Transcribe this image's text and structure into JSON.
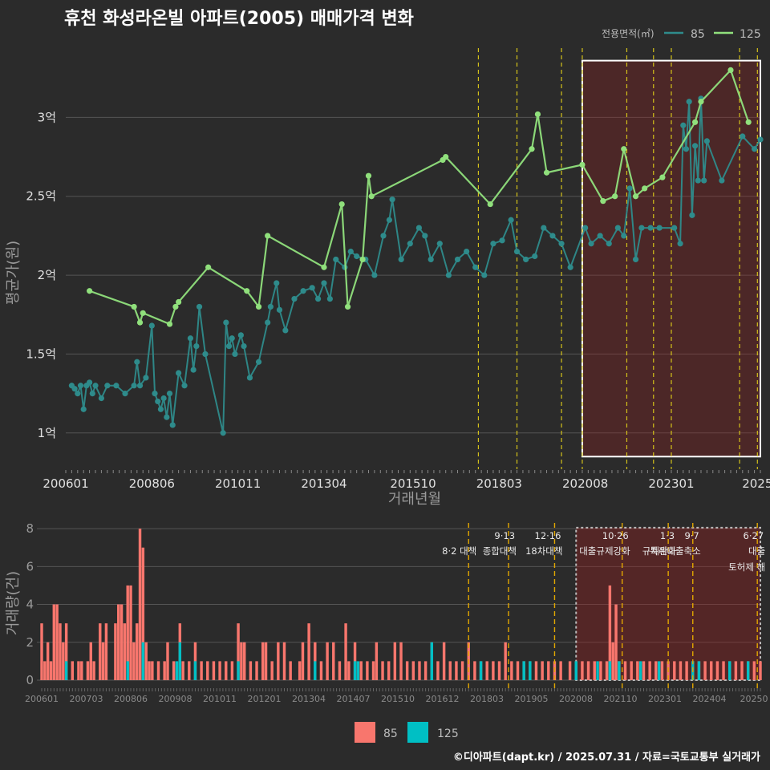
{
  "title": "휴천 화성라온빌 아파트(2005) 매매가격 변화",
  "caption": "©디아파트(dapt.kr) / 2025.07.31 / 자료=국토교통부 실거래가",
  "colors": {
    "s85": "#2e8b8b",
    "s125": "#90e07c",
    "bar85": "#f8766d",
    "bar125": "#00bfc4"
  },
  "chart_data": [
    {
      "type": "line",
      "xlabel": "거래년월",
      "ylabel": "평균가(원)",
      "x_ticks": [
        "200601",
        "200806",
        "201011",
        "201304",
        "201510",
        "201803",
        "202008",
        "202301",
        "2025"
      ],
      "y_ticks": [
        "1억",
        "1.5억",
        "2억",
        "2.5억",
        "3억"
      ],
      "ylim": [
        0.77,
        3.48
      ],
      "xlim": [
        "2006-01",
        "2025-07"
      ],
      "legend": {
        "title": "전용면적(㎡)",
        "position": "top-right",
        "entries": [
          "85",
          "125"
        ]
      },
      "event_lines": [
        "2017-08",
        "2018-09",
        "2019-12",
        "2020-07",
        "2021-10",
        "2022-07",
        "2023-01",
        "2024-12",
        "2025-06"
      ],
      "highlight_box": {
        "from": "2020-07",
        "to": "2025-07",
        "y_from": 0.85,
        "y_to": 3.36
      },
      "series": [
        {
          "name": "85",
          "points": [
            [
              "2006-03",
              1.3
            ],
            [
              "2006-04",
              1.28
            ],
            [
              "2006-05",
              1.25
            ],
            [
              "2006-06",
              1.3
            ],
            [
              "2006-07",
              1.15
            ],
            [
              "2006-08",
              1.3
            ],
            [
              "2006-09",
              1.32
            ],
            [
              "2006-10",
              1.25
            ],
            [
              "2006-11",
              1.3
            ],
            [
              "2007-01",
              1.22
            ],
            [
              "2007-03",
              1.3
            ],
            [
              "2007-06",
              1.3
            ],
            [
              "2007-09",
              1.25
            ],
            [
              "2007-12",
              1.3
            ],
            [
              "2008-01",
              1.45
            ],
            [
              "2008-02",
              1.3
            ],
            [
              "2008-04",
              1.35
            ],
            [
              "2008-06",
              1.68
            ],
            [
              "2008-07",
              1.25
            ],
            [
              "2008-08",
              1.2
            ],
            [
              "2008-09",
              1.15
            ],
            [
              "2008-10",
              1.22
            ],
            [
              "2008-11",
              1.1
            ],
            [
              "2008-12",
              1.25
            ],
            [
              "2009-01",
              1.05
            ],
            [
              "2009-03",
              1.38
            ],
            [
              "2009-05",
              1.3
            ],
            [
              "2009-07",
              1.6
            ],
            [
              "2009-08",
              1.4
            ],
            [
              "2009-09",
              1.55
            ],
            [
              "2009-10",
              1.8
            ],
            [
              "2009-12",
              1.5
            ],
            [
              "2010-06",
              1.0
            ],
            [
              "2010-07",
              1.7
            ],
            [
              "2010-08",
              1.55
            ],
            [
              "2010-09",
              1.6
            ],
            [
              "2010-10",
              1.5
            ],
            [
              "2010-12",
              1.62
            ],
            [
              "2011-01",
              1.55
            ],
            [
              "2011-03",
              1.35
            ],
            [
              "2011-06",
              1.45
            ],
            [
              "2011-09",
              1.7
            ],
            [
              "2011-10",
              1.8
            ],
            [
              "2011-12",
              1.95
            ],
            [
              "2012-01",
              1.78
            ],
            [
              "2012-03",
              1.65
            ],
            [
              "2012-06",
              1.85
            ],
            [
              "2012-09",
              1.9
            ],
            [
              "2012-12",
              1.92
            ],
            [
              "2013-02",
              1.85
            ],
            [
              "2013-04",
              1.95
            ],
            [
              "2013-06",
              1.85
            ],
            [
              "2013-08",
              2.1
            ],
            [
              "2013-11",
              2.05
            ],
            [
              "2014-01",
              2.15
            ],
            [
              "2014-03",
              2.12
            ],
            [
              "2014-06",
              2.1
            ],
            [
              "2014-09",
              2.0
            ],
            [
              "2014-12",
              2.25
            ],
            [
              "2015-02",
              2.35
            ],
            [
              "2015-03",
              2.48
            ],
            [
              "2015-06",
              2.1
            ],
            [
              "2015-09",
              2.2
            ],
            [
              "2015-12",
              2.3
            ],
            [
              "2016-02",
              2.25
            ],
            [
              "2016-04",
              2.1
            ],
            [
              "2016-07",
              2.2
            ],
            [
              "2016-10",
              2.0
            ],
            [
              "2017-01",
              2.1
            ],
            [
              "2017-04",
              2.15
            ],
            [
              "2017-07",
              2.05
            ],
            [
              "2017-10",
              2.0
            ],
            [
              "2018-01",
              2.2
            ],
            [
              "2018-04",
              2.22
            ],
            [
              "2018-07",
              2.35
            ],
            [
              "2018-09",
              2.15
            ],
            [
              "2018-12",
              2.1
            ],
            [
              "2019-03",
              2.12
            ],
            [
              "2019-06",
              2.3
            ],
            [
              "2019-09",
              2.25
            ],
            [
              "2019-12",
              2.2
            ],
            [
              "2020-03",
              2.05
            ],
            [
              "2020-08",
              2.3
            ],
            [
              "2020-10",
              2.2
            ],
            [
              "2021-01",
              2.25
            ],
            [
              "2021-04",
              2.2
            ],
            [
              "2021-07",
              2.3
            ],
            [
              "2021-09",
              2.25
            ],
            [
              "2021-11",
              2.55
            ],
            [
              "2022-01",
              2.1
            ],
            [
              "2022-03",
              2.3
            ],
            [
              "2022-06",
              2.3
            ],
            [
              "2022-09",
              2.3
            ],
            [
              "2023-02",
              2.3
            ],
            [
              "2023-04",
              2.2
            ],
            [
              "2023-05",
              2.95
            ],
            [
              "2023-06",
              2.8
            ],
            [
              "2023-07",
              3.1
            ],
            [
              "2023-08",
              2.38
            ],
            [
              "2023-09",
              2.82
            ],
            [
              "2023-10",
              2.6
            ],
            [
              "2023-11",
              3.12
            ],
            [
              "2023-12",
              2.6
            ],
            [
              "2024-01",
              2.85
            ],
            [
              "2024-06",
              2.6
            ],
            [
              "2025-01",
              2.88
            ],
            [
              "2025-05",
              2.8
            ],
            [
              "2025-07",
              2.86
            ]
          ]
        },
        {
          "name": "125",
          "points": [
            [
              "2006-09",
              1.9
            ],
            [
              "2007-12",
              1.8
            ],
            [
              "2008-02",
              1.7
            ],
            [
              "2008-03",
              1.76
            ],
            [
              "2008-12",
              1.69
            ],
            [
              "2009-02",
              1.8
            ],
            [
              "2009-03",
              1.83
            ],
            [
              "2010-01",
              2.05
            ],
            [
              "2011-02",
              1.9
            ],
            [
              "2011-06",
              1.8
            ],
            [
              "2011-09",
              2.25
            ],
            [
              "2013-04",
              2.05
            ],
            [
              "2013-10",
              2.45
            ],
            [
              "2013-12",
              1.8
            ],
            [
              "2014-05",
              2.1
            ],
            [
              "2014-07",
              2.63
            ],
            [
              "2014-08",
              2.5
            ],
            [
              "2016-08",
              2.73
            ],
            [
              "2016-09",
              2.75
            ],
            [
              "2017-12",
              2.45
            ],
            [
              "2019-02",
              2.8
            ],
            [
              "2019-04",
              3.02
            ],
            [
              "2019-07",
              2.65
            ],
            [
              "2020-07",
              2.7
            ],
            [
              "2021-02",
              2.47
            ],
            [
              "2021-06",
              2.5
            ],
            [
              "2021-09",
              2.8
            ],
            [
              "2022-01",
              2.5
            ],
            [
              "2022-04",
              2.55
            ],
            [
              "2022-10",
              2.62
            ],
            [
              "2023-09",
              2.97
            ],
            [
              "2023-11",
              3.1
            ],
            [
              "2024-09",
              3.3
            ],
            [
              "2025-03",
              2.97
            ]
          ]
        }
      ]
    },
    {
      "type": "bar",
      "ylabel": "거래량(건)",
      "y_ticks": [
        "0",
        "2",
        "4",
        "6",
        "8"
      ],
      "ylim": [
        0,
        8.3
      ],
      "x_ticks": [
        "200601",
        "200703",
        "200806",
        "200908",
        "201011",
        "201201",
        "201304",
        "201407",
        "201510",
        "201612",
        "201803",
        "201905",
        "202008",
        "202110",
        "202301",
        "202404",
        "20250"
      ],
      "legend": {
        "position": "bottom",
        "entries": [
          "85",
          "125"
        ]
      },
      "event_lines": [
        {
          "month": "2017-08",
          "label1": "",
          "label2": "8·2 대책"
        },
        {
          "month": "2018-09",
          "label1": "9·13",
          "label2": "종합대책"
        },
        {
          "month": "2019-12",
          "label1": "12·16",
          "label2": "18차대책"
        },
        {
          "month": "2021-10",
          "label1": "10·26",
          "label2": "대출규제강화"
        },
        {
          "month": "2023-01",
          "label1": "1·3",
          "label2": "규제완화"
        },
        {
          "month": "2023-09",
          "label1": "9·7",
          "label2": "특례대출축소"
        },
        {
          "month": "2025-06",
          "label1": "6·27",
          "label2": "대출"
        },
        {
          "month": "2025-06",
          "label1": "",
          "label2": "토허제 해"
        }
      ],
      "highlight_box": {
        "from": "2020-07",
        "to": "2025-07"
      },
      "series": [
        {
          "name": "85",
          "values": {
            "2006-01": 3,
            "2006-02": 1,
            "2006-03": 2,
            "2006-04": 1,
            "2006-05": 4,
            "2006-06": 4,
            "2006-07": 3,
            "2006-08": 2,
            "2006-09": 3,
            "2006-11": 1,
            "2007-01": 1,
            "2007-02": 1,
            "2007-04": 1,
            "2007-05": 2,
            "2007-06": 1,
            "2007-08": 3,
            "2007-09": 2,
            "2007-10": 3,
            "2008-01": 3,
            "2008-02": 4,
            "2008-03": 4,
            "2008-04": 3,
            "2008-05": 5,
            "2008-06": 5,
            "2008-07": 2,
            "2008-08": 3,
            "2008-09": 8,
            "2008-10": 7,
            "2008-11": 2,
            "2008-12": 1,
            "2009-01": 1,
            "2009-03": 1,
            "2009-05": 1,
            "2009-06": 2,
            "2009-08": 1,
            "2009-10": 3,
            "2009-11": 1,
            "2010-01": 1,
            "2010-03": 2,
            "2010-05": 1,
            "2010-07": 1,
            "2010-09": 1,
            "2010-11": 1,
            "2011-01": 1,
            "2011-03": 1,
            "2011-05": 3,
            "2011-06": 2,
            "2011-07": 2,
            "2011-09": 1,
            "2011-11": 1,
            "2012-01": 2,
            "2012-02": 2,
            "2012-04": 1,
            "2012-06": 2,
            "2012-08": 2,
            "2012-10": 1,
            "2013-01": 1,
            "2013-02": 2,
            "2013-04": 3,
            "2013-06": 2,
            "2013-08": 1,
            "2013-10": 2,
            "2013-12": 2,
            "2014-02": 1,
            "2014-04": 3,
            "2014-05": 1,
            "2014-07": 2,
            "2014-09": 1,
            "2014-11": 1,
            "2015-01": 1,
            "2015-02": 2,
            "2015-04": 1,
            "2015-06": 1,
            "2015-08": 2,
            "2015-10": 2,
            "2015-12": 1,
            "2016-02": 1,
            "2016-04": 1,
            "2016-06": 1,
            "2016-08": 2,
            "2016-10": 1,
            "2016-12": 2,
            "2017-02": 1,
            "2017-04": 1,
            "2017-06": 1,
            "2017-08": 2,
            "2017-10": 1,
            "2017-12": 1,
            "2018-02": 1,
            "2018-04": 1,
            "2018-06": 1,
            "2018-08": 2,
            "2018-10": 1,
            "2018-12": 1,
            "2019-02": 1,
            "2019-04": 1,
            "2019-06": 1,
            "2019-08": 1,
            "2019-10": 1,
            "2019-12": 1,
            "2020-02": 1,
            "2020-05": 1,
            "2020-07": 1,
            "2020-09": 1,
            "2020-11": 1,
            "2021-01": 1,
            "2021-03": 1,
            "2021-05": 1,
            "2021-06": 5,
            "2021-07": 2,
            "2021-08": 4,
            "2021-09": 1,
            "2021-11": 1,
            "2022-01": 1,
            "2022-03": 1,
            "2022-05": 1,
            "2022-07": 1,
            "2022-09": 1,
            "2022-11": 1,
            "2023-01": 1,
            "2023-03": 1,
            "2023-05": 1,
            "2023-07": 1,
            "2023-09": 1,
            "2023-11": 1,
            "2024-01": 1,
            "2024-03": 1,
            "2024-05": 1,
            "2024-07": 1,
            "2024-09": 1,
            "2024-11": 1,
            "2025-01": 1,
            "2025-03": 1,
            "2025-05": 1,
            "2025-07": 1
          }
        },
        {
          "name": "125",
          "values": {
            "2006-09": 1,
            "2008-05": 1,
            "2008-10": 2,
            "2009-09": 1,
            "2009-10": 2,
            "2010-03": 1,
            "2011-05": 1,
            "2013-06": 1,
            "2014-07": 1,
            "2014-08": 1,
            "2016-08": 2,
            "2017-12": 1,
            "2019-02": 1,
            "2019-04": 1,
            "2020-07": 1,
            "2021-02": 1,
            "2021-06": 1,
            "2021-09": 1,
            "2022-04": 1,
            "2022-10": 1,
            "2023-09": 1,
            "2023-11": 1,
            "2024-09": 1,
            "2025-03": 1
          }
        }
      ]
    }
  ]
}
